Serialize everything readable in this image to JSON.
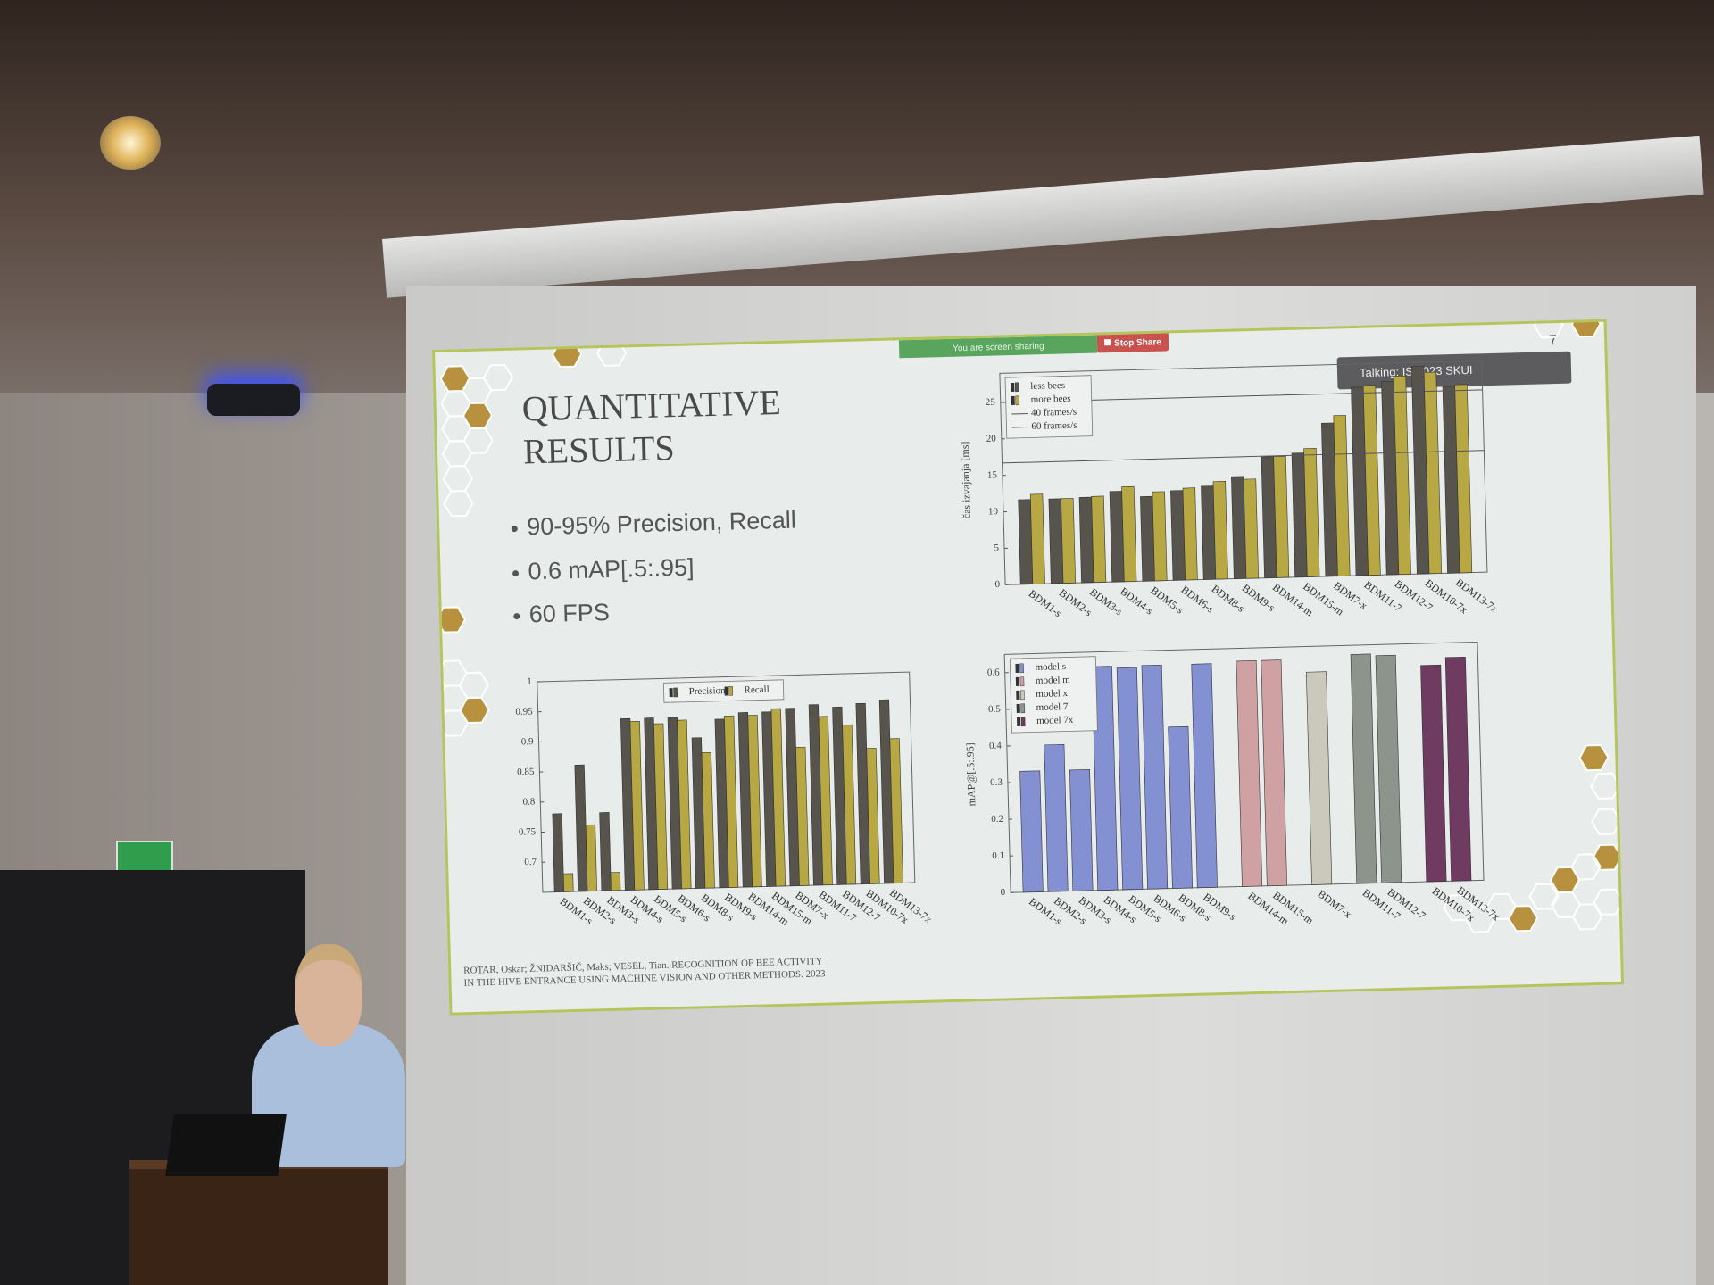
{
  "slide": {
    "page_number": "7",
    "title_lines": [
      "QUANTITATIVE",
      "RESULTS"
    ],
    "bullets": [
      "90-95% Precision, Recall",
      "0.6 mAP[.5:.95]",
      "60 FPS"
    ],
    "citation_lines": [
      "ROTAR, Oskar; ŽNIDARŠIČ, Maks; VESEL, Tian. RECOGNITION OF BEE ACTIVITY",
      "IN THE HIVE ENTRANCE USING MACHINE VISION AND OTHER METHODS. 2023"
    ],
    "sharing_notice": "You are screen sharing",
    "stop_share": "Stop Share",
    "talking": "Talking: IS 2023 SKUI"
  },
  "chart_data": [
    {
      "type": "bar",
      "ylabel": "čas izvajanja [ms]",
      "categories": [
        "BDM1-s",
        "BDM2-s",
        "BDM3-s",
        "BDM4-s",
        "BDM5-s",
        "BDM6-s",
        "BDM8-s",
        "BDM9-s",
        "BDM14-m",
        "BDM15-m",
        "BDM7-x",
        "BDM11-7",
        "BDM12-7",
        "BDM10-7x",
        "BDM13-7x"
      ],
      "series": [
        {
          "name": "less bees",
          "color": "#57544e",
          "values": [
            11.6,
            11.6,
            11.7,
            12.4,
            11.6,
            12.3,
            12.8,
            14.0,
            16.6,
            17.0,
            21.0,
            25.8,
            26.5,
            28.5,
            25.6
          ]
        },
        {
          "name": "more bees",
          "color": "#b7a843",
          "values": [
            12.3,
            11.6,
            11.8,
            13.0,
            12.2,
            12.6,
            13.4,
            13.6,
            16.6,
            17.6,
            22.0,
            26.0,
            27.2,
            27.6,
            25.8
          ]
        }
      ],
      "reference_lines": [
        {
          "name": "40 frames/s",
          "value": 25
        },
        {
          "name": "60 frames/s",
          "value": 16.7
        }
      ],
      "ylim": [
        0,
        29
      ],
      "yticks": [
        0,
        5,
        10,
        15,
        20,
        25
      ],
      "legend": "upper left"
    },
    {
      "type": "bar",
      "categories": [
        "BDM1-s",
        "BDM2-s",
        "BDM3-s",
        "BDM4-s",
        "BDM5-s",
        "BDM6-s",
        "BDM8-s",
        "BDM9-s",
        "BDM14-m",
        "BDM15-m",
        "BDM7-x",
        "BDM11-7",
        "BDM12-7",
        "BDM10-7x",
        "BDM13-7x"
      ],
      "series": [
        {
          "name": "Precision",
          "color": "#57544e",
          "values": [
            0.78,
            0.86,
            0.78,
            0.935,
            0.935,
            0.935,
            0.9,
            0.93,
            0.94,
            0.94,
            0.945,
            0.95,
            0.945,
            0.95,
            0.955
          ]
        },
        {
          "name": "Recall",
          "color": "#b7a843",
          "values": [
            0.68,
            0.76,
            0.68,
            0.93,
            0.925,
            0.93,
            0.875,
            0.935,
            0.935,
            0.945,
            0.88,
            0.93,
            0.915,
            0.875,
            0.89
          ]
        }
      ],
      "ylim": [
        0.65,
        1
      ],
      "yticks": [
        0.7,
        0.75,
        0.8,
        0.85,
        0.9,
        0.95,
        1
      ],
      "legend": "upper center"
    },
    {
      "type": "bar",
      "ylabel": "mAP@[.5:.95]",
      "categories": [
        "BDM1-s",
        "BDM2-s",
        "BDM3-s",
        "BDM4-s",
        "BDM5-s",
        "BDM6-s",
        "BDM8-s",
        "BDM9-s",
        "BDM14-m",
        "BDM15-m",
        "BDM7-x",
        "BDM11-7",
        "BDM12-7",
        "BDM10-7x",
        "BDM13-7x"
      ],
      "series": [
        {
          "name": "model s",
          "color": "#8390d2",
          "values": [
            0.33,
            0.4,
            0.33,
            0.61,
            0.605,
            0.61,
            0.44,
            0.61,
            null,
            null,
            null,
            null,
            null,
            null,
            null
          ]
        },
        {
          "name": "model m",
          "color": "#cfa1a3",
          "values": [
            null,
            null,
            null,
            null,
            null,
            null,
            null,
            null,
            0.615,
            0.615,
            null,
            null,
            null,
            null,
            null
          ]
        },
        {
          "name": "model x",
          "color": "#cbc9bb",
          "values": [
            null,
            null,
            null,
            null,
            null,
            null,
            null,
            null,
            null,
            null,
            0.58,
            null,
            null,
            null,
            null
          ]
        },
        {
          "name": "model 7",
          "color": "#8c948c",
          "values": [
            null,
            null,
            null,
            null,
            null,
            null,
            null,
            null,
            null,
            null,
            null,
            0.625,
            0.62,
            null,
            null
          ]
        },
        {
          "name": "model 7x",
          "color": "#6f3b61",
          "values": [
            null,
            null,
            null,
            null,
            null,
            null,
            null,
            null,
            null,
            null,
            null,
            null,
            null,
            0.59,
            0.61
          ]
        }
      ],
      "ylim": [
        0,
        0.65
      ],
      "yticks": [
        0,
        0.1,
        0.2,
        0.3,
        0.4,
        0.5,
        0.6
      ],
      "legend": "upper left"
    }
  ]
}
